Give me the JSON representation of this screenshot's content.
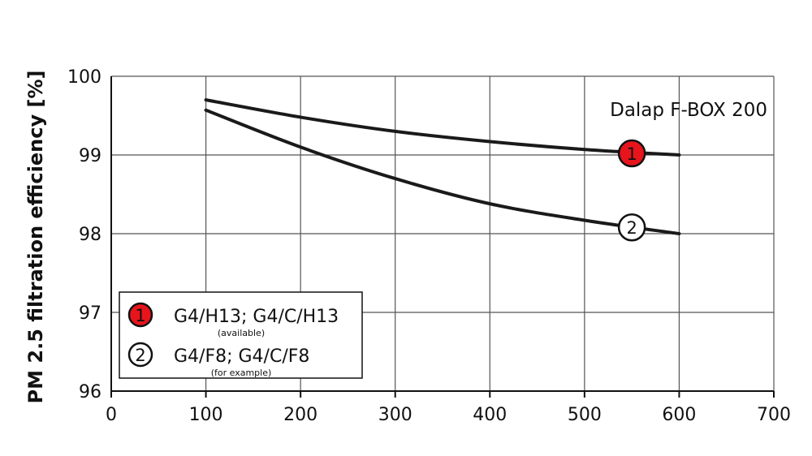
{
  "chart_data": {
    "type": "line",
    "title": "",
    "annotation": "Dalap F-BOX 200",
    "xlabel": "",
    "ylabel": "PM 2.5 filtration efficiency [%]",
    "xlim": [
      0,
      700
    ],
    "ylim": [
      96,
      100
    ],
    "xticks": [
      0,
      100,
      200,
      300,
      400,
      500,
      600,
      700
    ],
    "yticks": [
      96,
      97,
      98,
      99,
      100
    ],
    "grid": true,
    "legend_position": "bottom-left",
    "series": [
      {
        "name": "G4/H13; G4/C/H13",
        "note": "(available)",
        "marker_label": "1",
        "marker_at": [
          550,
          99.02
        ],
        "marker_fill": "#e8141c",
        "color": "#1a1a1a",
        "x": [
          100,
          200,
          300,
          400,
          500,
          600
        ],
        "y": [
          99.7,
          99.48,
          99.3,
          99.17,
          99.07,
          99.0
        ]
      },
      {
        "name": "G4/F8; G4/C/F8",
        "note": "(for example)",
        "marker_label": "2",
        "marker_at": [
          550,
          98.08
        ],
        "marker_fill": "#ffffff",
        "color": "#1a1a1a",
        "x": [
          100,
          200,
          300,
          400,
          500,
          600
        ],
        "y": [
          99.57,
          99.1,
          98.7,
          98.38,
          98.17,
          98.0
        ]
      }
    ]
  }
}
